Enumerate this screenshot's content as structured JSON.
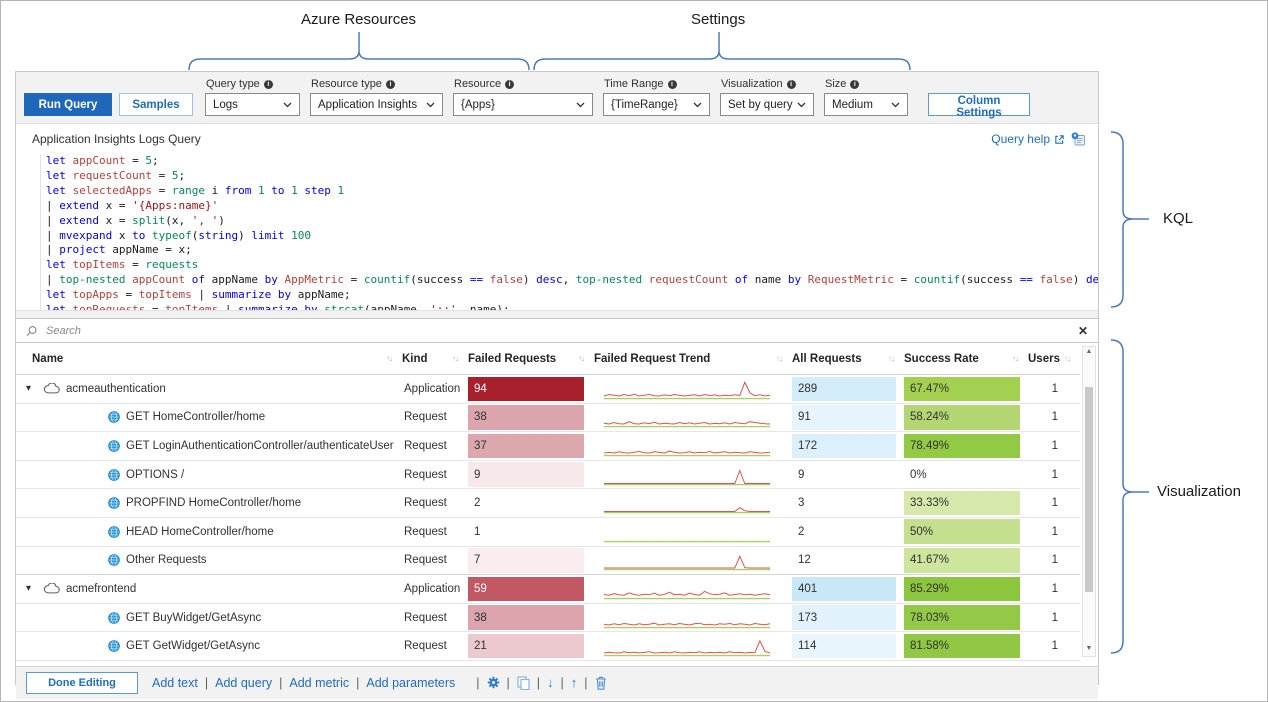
{
  "annotations": {
    "top_left": "Azure Resources",
    "top_right": "Settings",
    "right_upper": "KQL",
    "right_lower": "Visualization",
    "brace_color": "#4a7abc"
  },
  "toolbar": {
    "run_query": "Run Query",
    "samples": "Samples",
    "column_settings": "Column Settings",
    "dropdowns": [
      {
        "label": "Query type",
        "value": "Logs"
      },
      {
        "label": "Resource type",
        "value": "Application Insights"
      },
      {
        "label": "Resource",
        "value": "{Apps}"
      },
      {
        "label": "Time Range",
        "value": "{TimeRange}"
      },
      {
        "label": "Visualization",
        "value": "Set by query"
      },
      {
        "label": "Size",
        "value": "Medium"
      }
    ]
  },
  "query": {
    "title": "Application Insights Logs Query",
    "help_label": "Query help",
    "code_lines": [
      [
        [
          "k",
          "let "
        ],
        [
          "v",
          "appCount"
        ],
        [
          "p",
          " = "
        ],
        [
          "n",
          "5"
        ],
        [
          "p",
          ";"
        ]
      ],
      [
        [
          "k",
          "let "
        ],
        [
          "v",
          "requestCount"
        ],
        [
          "p",
          " = "
        ],
        [
          "n",
          "5"
        ],
        [
          "p",
          ";"
        ]
      ],
      [
        [
          "k",
          "let "
        ],
        [
          "v",
          "selectedApps"
        ],
        [
          "p",
          " = "
        ],
        [
          "f",
          "range"
        ],
        [
          "p",
          " i "
        ],
        [
          "k",
          "from"
        ],
        [
          "p",
          " "
        ],
        [
          "n",
          "1"
        ],
        [
          "p",
          " "
        ],
        [
          "k",
          "to"
        ],
        [
          "p",
          " "
        ],
        [
          "n",
          "1"
        ],
        [
          "p",
          " "
        ],
        [
          "k",
          "step"
        ],
        [
          "p",
          " "
        ],
        [
          "n",
          "1"
        ]
      ],
      [
        [
          "p",
          "| "
        ],
        [
          "k",
          "extend"
        ],
        [
          "p",
          " x = "
        ],
        [
          "s",
          "'{Apps:name}'"
        ]
      ],
      [
        [
          "p",
          "| "
        ],
        [
          "k",
          "extend"
        ],
        [
          "p",
          " x = "
        ],
        [
          "f",
          "split"
        ],
        [
          "p",
          "(x, "
        ],
        [
          "s",
          "', '"
        ],
        [
          "p",
          ")"
        ]
      ],
      [
        [
          "p",
          "| "
        ],
        [
          "k",
          "mvexpand"
        ],
        [
          "p",
          " x "
        ],
        [
          "k",
          "to"
        ],
        [
          "p",
          " "
        ],
        [
          "f",
          "typeof"
        ],
        [
          "p",
          "("
        ],
        [
          "k",
          "string"
        ],
        [
          "p",
          ") "
        ],
        [
          "k",
          "limit"
        ],
        [
          "p",
          " "
        ],
        [
          "n",
          "100"
        ]
      ],
      [
        [
          "p",
          "| "
        ],
        [
          "k",
          "project"
        ],
        [
          "p",
          " appName = x;"
        ]
      ],
      [
        [
          "k",
          "let "
        ],
        [
          "v",
          "topItems"
        ],
        [
          "p",
          " = "
        ],
        [
          "f",
          "requests"
        ]
      ],
      [
        [
          "p",
          "| "
        ],
        [
          "f",
          "top-nested"
        ],
        [
          "p",
          " "
        ],
        [
          "v",
          "appCount"
        ],
        [
          "p",
          " "
        ],
        [
          "k",
          "of"
        ],
        [
          "p",
          " appName "
        ],
        [
          "k",
          "by"
        ],
        [
          "p",
          " "
        ],
        [
          "v",
          "AppMetric"
        ],
        [
          "p",
          " = "
        ],
        [
          "f",
          "countif"
        ],
        [
          "p",
          "(success "
        ],
        [
          "k",
          "=="
        ],
        [
          "p",
          " "
        ],
        [
          "v",
          "false"
        ],
        [
          "p",
          ") "
        ],
        [
          "k",
          "desc"
        ],
        [
          "p",
          ", "
        ],
        [
          "f",
          "top-nested"
        ],
        [
          "p",
          " "
        ],
        [
          "v",
          "requestCount"
        ],
        [
          "p",
          " "
        ],
        [
          "k",
          "of"
        ],
        [
          "p",
          " name "
        ],
        [
          "k",
          "by"
        ],
        [
          "p",
          " "
        ],
        [
          "v",
          "RequestMetric"
        ],
        [
          "p",
          " = "
        ],
        [
          "f",
          "countif"
        ],
        [
          "p",
          "(success "
        ],
        [
          "k",
          "=="
        ],
        [
          "p",
          " "
        ],
        [
          "v",
          "false"
        ],
        [
          "p",
          ") "
        ],
        [
          "k",
          "desc"
        ],
        [
          "p",
          ";"
        ]
      ],
      [
        [
          "k",
          "let "
        ],
        [
          "v",
          "topApps"
        ],
        [
          "p",
          " = "
        ],
        [
          "v",
          "topItems"
        ],
        [
          "p",
          " | "
        ],
        [
          "k",
          "summarize"
        ],
        [
          "p",
          " "
        ],
        [
          "k",
          "by"
        ],
        [
          "p",
          " appName;"
        ]
      ],
      [
        [
          "k",
          "let "
        ],
        [
          "v",
          "topRequests"
        ],
        [
          "p",
          " = "
        ],
        [
          "v",
          "topItems"
        ],
        [
          "p",
          " | "
        ],
        [
          "k",
          "summarize"
        ],
        [
          "p",
          " "
        ],
        [
          "k",
          "by"
        ],
        [
          "p",
          " "
        ],
        [
          "f",
          "strcat"
        ],
        [
          "p",
          "(appName, "
        ],
        [
          "s",
          "';;'"
        ],
        [
          "p",
          ", name);"
        ]
      ]
    ]
  },
  "search": {
    "placeholder": "Search",
    "clear": "✕"
  },
  "table": {
    "columns": [
      "Name",
      "Kind",
      "Failed Requests",
      "Failed Request Trend",
      "All Requests",
      "Success Rate",
      "Users"
    ],
    "rows": [
      {
        "name": "acmeauthentication",
        "kind": "Application",
        "failed": "94",
        "failed_bg": "#a8202c",
        "failed_fg": "#ffffff",
        "all": "289",
        "all_bg": "#d2ecfa",
        "success": "67.47%",
        "success_bg": "#a3d04f",
        "users": "1",
        "trend": [
          1,
          2,
          1.5,
          1,
          2,
          1.2,
          2.2,
          1,
          1.5,
          2,
          1.2,
          1,
          1.7,
          1.2,
          2,
          1.5,
          1,
          1.4,
          1.8,
          1,
          2,
          1.3,
          1.7,
          1,
          1.5,
          1.2,
          1.8,
          1.4,
          10,
          3,
          1.2,
          1.8,
          1,
          1.5
        ]
      },
      {
        "name": "GET HomeController/home",
        "kind": "Request",
        "failed": "38",
        "failed_bg": "#dca4ac",
        "all": "91",
        "all_bg": "#e6f4fd",
        "success": "58.24%",
        "success_bg": "#b3d672",
        "users": "1",
        "trend": [
          1.5,
          1,
          2,
          1.2,
          1,
          2.5,
          1.2,
          1,
          1.8,
          1.2,
          2.2,
          1,
          1.5,
          1.2,
          1,
          2,
          1.2,
          1.8,
          1,
          1.5,
          2,
          1,
          1.4,
          1.2,
          1.8,
          1,
          2,
          1.5,
          1.2,
          2.5,
          2,
          1.5,
          1.2,
          1
        ]
      },
      {
        "name": "GET LoginAuthenticationController/authenticateUser",
        "kind": "Request",
        "failed": "37",
        "failed_bg": "#dda7ae",
        "all": "172",
        "all_bg": "#dcf0fb",
        "success": "78.49%",
        "success_bg": "#92c945",
        "users": "1",
        "trend": [
          1,
          1.4,
          1,
          1.8,
          1.2,
          1,
          1.5,
          2,
          1.2,
          1,
          1.8,
          1.4,
          1,
          2.2,
          1.5,
          1,
          1.2,
          1.8,
          1,
          1.5,
          1.2,
          2,
          1,
          1.4,
          1.8,
          1,
          1.5,
          1.2,
          1,
          1.8,
          1.4,
          1,
          1.2,
          1.5
        ]
      },
      {
        "name": "OPTIONS /",
        "kind": "Request",
        "failed": "9",
        "failed_bg": "#f7e8ea",
        "all": "9",
        "all_bg": "",
        "success": "0%",
        "success_bg": "",
        "users": "1",
        "trend": [
          0,
          0,
          0,
          0,
          0,
          0,
          0,
          0,
          0,
          0,
          0,
          0,
          0,
          0,
          0,
          0,
          0,
          0,
          0,
          0,
          0,
          0,
          0,
          0,
          0,
          0,
          0,
          8.5,
          0,
          0,
          0,
          0,
          0,
          0
        ]
      },
      {
        "name": "PROPFIND HomeController/home",
        "kind": "Request",
        "failed": "2",
        "failed_bg": "",
        "all": "3",
        "all_bg": "",
        "success": "33.33%",
        "success_bg": "#d6e9aa",
        "users": "1",
        "trend": [
          0,
          0,
          0,
          0,
          0,
          0,
          0,
          0,
          0,
          0,
          0,
          0,
          0,
          0,
          0,
          0,
          0,
          0,
          0,
          0,
          0,
          0,
          0,
          0,
          0,
          0,
          0,
          2.5,
          0.5,
          0,
          0,
          0,
          0,
          0
        ]
      },
      {
        "name": "HEAD HomeController/home",
        "kind": "Request",
        "failed": "1",
        "failed_bg": "",
        "all": "2",
        "all_bg": "",
        "success": "50%",
        "success_bg": "#c4df8d",
        "users": "1",
        "trend": [
          0,
          0,
          0,
          0,
          0,
          0,
          0,
          0,
          0,
          0,
          0,
          0,
          0,
          0,
          0,
          0,
          0,
          0,
          0,
          0,
          0,
          0,
          0,
          0,
          0,
          0,
          0,
          0,
          0,
          0,
          0,
          0,
          0,
          0
        ]
      },
      {
        "name": "Other Requests",
        "kind": "Request",
        "failed": "7",
        "failed_bg": "#f9edef",
        "all": "12",
        "all_bg": "",
        "success": "41.67%",
        "success_bg": "#cee59e",
        "users": "1",
        "trend": [
          0.3,
          0.3,
          0.3,
          0.3,
          0.3,
          0.3,
          0.3,
          0.3,
          0.3,
          0.3,
          0.3,
          0.3,
          0.3,
          0.3,
          0.3,
          0.3,
          0.3,
          0.3,
          0.3,
          0.3,
          0.3,
          0.3,
          0.3,
          0.3,
          0.3,
          0.3,
          0.3,
          8,
          0.5,
          0.3,
          0.3,
          0.3,
          0.3,
          0.3
        ]
      },
      {
        "name": "acmefrontend",
        "kind": "Application",
        "failed": "59",
        "failed_bg": "#c25863",
        "failed_fg": "#ffffff",
        "all": "401",
        "all_bg": "#c8e8f8",
        "success": "85.29%",
        "success_bg": "#8cc63f",
        "users": "1",
        "trend": [
          2,
          1.5,
          2.5,
          1.8,
          1.5,
          3,
          2,
          1.5,
          2.2,
          1.8,
          2.8,
          1.5,
          2,
          3.5,
          1.8,
          2.2,
          1.5,
          2.8,
          2,
          1.5,
          4,
          2.5,
          1.8,
          2.2,
          3,
          1.5,
          2,
          2.5,
          1.8,
          2.2,
          1.5,
          2,
          2.5,
          1.8
        ]
      },
      {
        "name": "GET BuyWidget/GetAsync",
        "kind": "Request",
        "failed": "38",
        "failed_bg": "#dca4ac",
        "all": "173",
        "all_bg": "#e1f2fc",
        "success": "78.03%",
        "success_bg": "#93c947",
        "users": "1",
        "trend": [
          1.5,
          1,
          1.8,
          1.2,
          2,
          1.5,
          1,
          1.8,
          1.2,
          1.5,
          2.2,
          1,
          1.5,
          1.8,
          1.2,
          2,
          1.5,
          1,
          1.8,
          2.2,
          1.2,
          1.5,
          1,
          1.8,
          1.5,
          2,
          1.2,
          1.8,
          1.5,
          1,
          2,
          1.5,
          1.2,
          1.8
        ]
      },
      {
        "name": "GET GetWidget/GetAsync",
        "kind": "Request",
        "failed": "21",
        "failed_bg": "#ecc9cf",
        "all": "114",
        "all_bg": "#e8f5fd",
        "success": "81.58%",
        "success_bg": "#90c843",
        "users": "1",
        "trend": [
          1,
          1.5,
          1.2,
          1,
          1.8,
          1.2,
          1.5,
          1,
          1.4,
          1.8,
          1,
          1.2,
          1.5,
          1,
          1.8,
          1.2,
          1,
          1.5,
          1.2,
          1.8,
          1,
          1.4,
          1.2,
          1.5,
          1,
          1.8,
          1.2,
          1.5,
          1,
          1.4,
          1.2,
          9,
          2,
          1
        ]
      }
    ],
    "heatmap_colors": {
      "failed_max": "#a8202c",
      "all_base": "#c8e8f8",
      "success_max": "#8cc63f"
    }
  },
  "footer": {
    "done": "Done Editing",
    "links": [
      "Add text",
      "Add query",
      "Add metric",
      "Add parameters"
    ]
  }
}
